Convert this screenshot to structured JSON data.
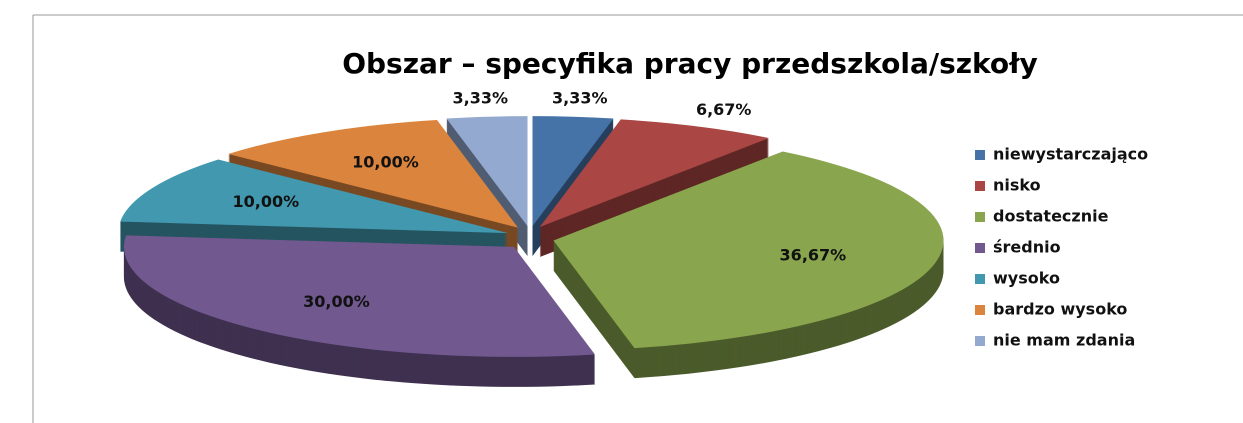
{
  "chart_data": {
    "type": "pie3d",
    "title": "Obszar – specyfika pracy przedszkola/szkoły",
    "categories": [
      "niewystarczająco",
      "nisko",
      "dostatecznie",
      "średnio",
      "wysoko",
      "bardzo wysoko",
      "nie mam zdania"
    ],
    "values": [
      3.33,
      6.67,
      36.67,
      30,
      10,
      10,
      3.33
    ],
    "value_labels": [
      "3,33%",
      "6,67%",
      "36,67%",
      "30,00%",
      "10,00%",
      "10,00%",
      "3,33%"
    ],
    "colors": [
      "#4572a7",
      "#aa4643",
      "#89a54e",
      "#71588f",
      "#4198af",
      "#db843d",
      "#93a9cf"
    ],
    "legend": "right"
  }
}
